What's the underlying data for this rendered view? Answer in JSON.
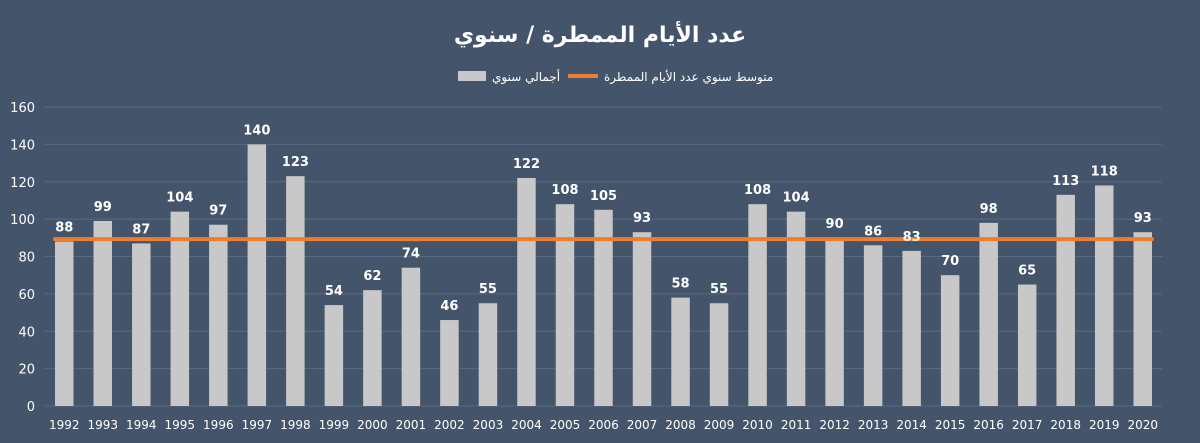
{
  "chart_data": {
    "type": "bar",
    "title": "عدد الأيام الممطرة / سنوي",
    "categories": [
      "1992",
      "1993",
      "1994",
      "1995",
      "1996",
      "1997",
      "1998",
      "1999",
      "2000",
      "2001",
      "2002",
      "2003",
      "2004",
      "2005",
      "2006",
      "2007",
      "2008",
      "2009",
      "2010",
      "2011",
      "2012",
      "2013",
      "2014",
      "2015",
      "2016",
      "2017",
      "2018",
      "2019",
      "2020"
    ],
    "series": [
      {
        "name": "أجمالي سنوي",
        "type": "bar",
        "color": "#c8c8c8",
        "values": [
          88,
          99,
          87,
          104,
          97,
          140,
          123,
          54,
          62,
          74,
          46,
          55,
          122,
          108,
          105,
          93,
          58,
          55,
          108,
          104,
          90,
          86,
          83,
          70,
          98,
          65,
          113,
          118,
          93
        ]
      },
      {
        "name": "متوسط سنوي عدد الأيام الممطرة",
        "type": "line",
        "color": "#ed7d31",
        "value": 89.3
      }
    ],
    "ylim": [
      0,
      160
    ],
    "yticks": [
      0,
      20,
      40,
      60,
      80,
      100,
      120,
      140,
      160
    ],
    "grid": true,
    "legend_position": "top",
    "colors": {
      "background": "#44546a",
      "text": "#ffffff",
      "grid": "#5a6a80"
    }
  }
}
